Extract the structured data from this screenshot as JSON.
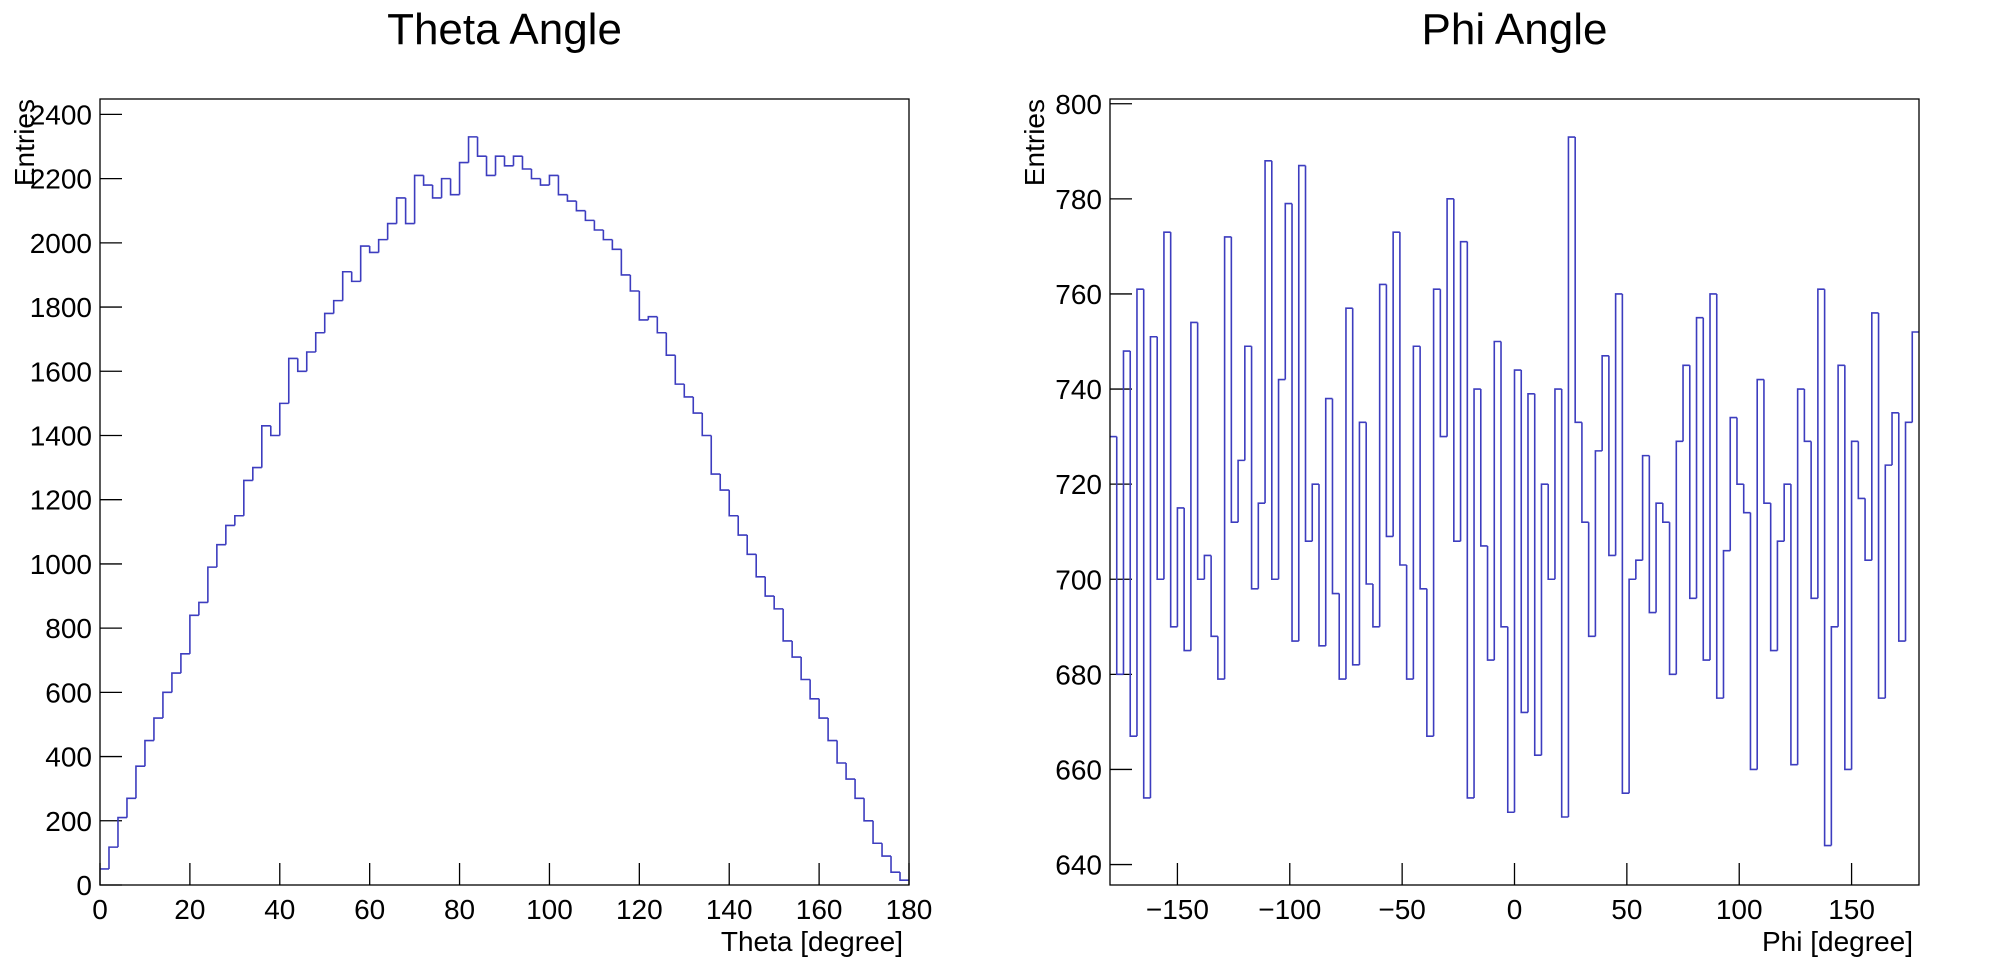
{
  "chart_data": [
    {
      "type": "histogram",
      "title": "Theta Angle",
      "x_label": "Theta [degree]",
      "y_label": "Entries",
      "color": "#3d3dbf",
      "bins": [
        0,
        2,
        4,
        6,
        8,
        10,
        12,
        14,
        16,
        18,
        20,
        22,
        24,
        26,
        28,
        30,
        32,
        34,
        36,
        38,
        40,
        42,
        44,
        46,
        48,
        50,
        52,
        54,
        56,
        58,
        60,
        62,
        64,
        66,
        68,
        70,
        72,
        74,
        76,
        78,
        80,
        82,
        84,
        86,
        88,
        90,
        92,
        94,
        96,
        98,
        100,
        102,
        104,
        106,
        108,
        110,
        112,
        114,
        116,
        118,
        120,
        122,
        124,
        126,
        128,
        130,
        132,
        134,
        136,
        138,
        140,
        142,
        144,
        146,
        148,
        150,
        152,
        154,
        156,
        158,
        160,
        162,
        164,
        166,
        168,
        170,
        172,
        174,
        176,
        178,
        180
      ],
      "values": [
        50,
        118,
        210,
        270,
        370,
        450,
        520,
        600,
        660,
        720,
        840,
        880,
        990,
        1060,
        1120,
        1150,
        1260,
        1300,
        1430,
        1400,
        1500,
        1640,
        1600,
        1660,
        1720,
        1780,
        1820,
        1910,
        1880,
        1990,
        1970,
        2010,
        2060,
        2140,
        2060,
        2210,
        2180,
        2140,
        2200,
        2150,
        2250,
        2330,
        2270,
        2210,
        2270,
        2240,
        2270,
        2230,
        2200,
        2180,
        2210,
        2150,
        2130,
        2100,
        2070,
        2040,
        2010,
        1980,
        1900,
        1850,
        1760,
        1770,
        1720,
        1650,
        1560,
        1520,
        1470,
        1400,
        1280,
        1230,
        1150,
        1090,
        1030,
        960,
        900,
        860,
        760,
        710,
        640,
        580,
        520,
        450,
        380,
        330,
        270,
        200,
        130,
        90,
        40,
        15
      ],
      "xlim": [
        0,
        180
      ],
      "ylim": [
        0,
        2448
      ],
      "xticks": [
        0,
        20,
        40,
        60,
        80,
        100,
        120,
        140,
        160,
        180
      ],
      "yticks": [
        0,
        200,
        400,
        600,
        800,
        1000,
        1200,
        1400,
        1600,
        1800,
        2000,
        2200,
        2400
      ]
    },
    {
      "type": "histogram",
      "title": "Phi Angle",
      "x_label": "Phi [degree]",
      "y_label": "Entries",
      "color": "#3d3dbf",
      "bins": [
        -180,
        -177,
        -174,
        -171,
        -168,
        -165,
        -162,
        -159,
        -156,
        -153,
        -150,
        -147,
        -144,
        -141,
        -138,
        -135,
        -132,
        -129,
        -126,
        -123,
        -120,
        -117,
        -114,
        -111,
        -108,
        -105,
        -102,
        -99,
        -96,
        -93,
        -90,
        -87,
        -84,
        -81,
        -78,
        -75,
        -72,
        -69,
        -66,
        -63,
        -60,
        -57,
        -54,
        -51,
        -48,
        -45,
        -42,
        -39,
        -36,
        -33,
        -30,
        -27,
        -24,
        -21,
        -18,
        -15,
        -12,
        -9,
        -6,
        -3,
        0,
        3,
        6,
        9,
        12,
        15,
        18,
        21,
        24,
        27,
        30,
        33,
        36,
        39,
        42,
        45,
        48,
        51,
        54,
        57,
        60,
        63,
        66,
        69,
        72,
        75,
        78,
        81,
        84,
        87,
        90,
        93,
        96,
        99,
        102,
        105,
        108,
        111,
        114,
        117,
        120,
        123,
        126,
        129,
        132,
        135,
        138,
        141,
        144,
        147,
        150,
        153,
        156,
        159,
        162,
        165,
        168,
        171,
        174,
        177,
        180
      ],
      "values": [
        730,
        680,
        748,
        667,
        761,
        654,
        751,
        700,
        773,
        690,
        715,
        685,
        754,
        700,
        705,
        688,
        679,
        772,
        712,
        725,
        749,
        698,
        716,
        788,
        700,
        742,
        779,
        687,
        787,
        708,
        720,
        686,
        738,
        697,
        679,
        757,
        682,
        733,
        699,
        690,
        762,
        709,
        773,
        703,
        679,
        749,
        698,
        667,
        761,
        730,
        780,
        708,
        771,
        654,
        740,
        707,
        683,
        750,
        690,
        651,
        744,
        672,
        739,
        663,
        720,
        700,
        740,
        650,
        793,
        733,
        712,
        688,
        727,
        747,
        705,
        760,
        655,
        700,
        704,
        726,
        693,
        716,
        712,
        680,
        729,
        745,
        696,
        755,
        683,
        760,
        675,
        706,
        734,
        720,
        714,
        660,
        742,
        716,
        685,
        708,
        720,
        661,
        740,
        729,
        696,
        761,
        644,
        690,
        745,
        660,
        729,
        717,
        704,
        756,
        675,
        724,
        735,
        687,
        733,
        752
      ],
      "xlim": [
        -180,
        180
      ],
      "ylim": [
        635.7,
        801
      ],
      "xticks": [
        {
          "value": -150,
          "label": "−150"
        },
        {
          "value": -100,
          "label": "−100"
        },
        {
          "value": -50,
          "label": "−50"
        },
        0,
        50,
        100,
        150
      ],
      "yticks": [
        640,
        660,
        680,
        700,
        720,
        740,
        760,
        780,
        800
      ]
    }
  ]
}
